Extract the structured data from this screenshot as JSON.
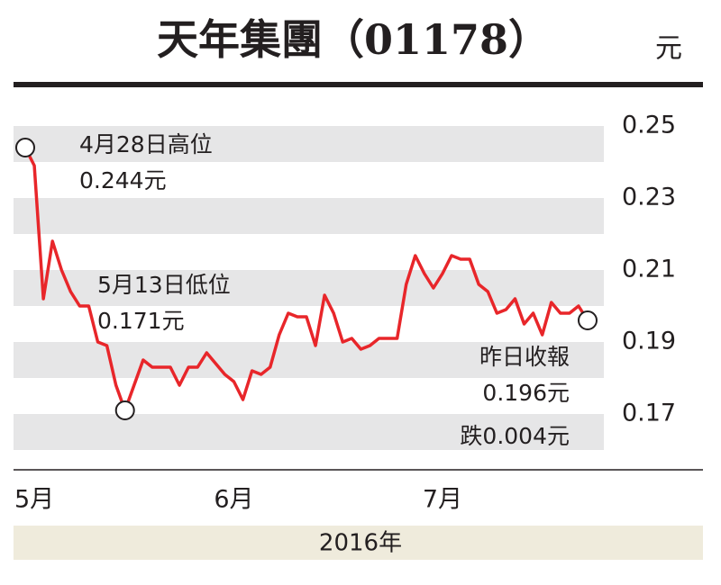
{
  "chart_data": {
    "type": "line",
    "title": "天年集團（01178）",
    "y_label": "元",
    "x_label": "2016年",
    "categories": [
      null,
      "5月",
      null,
      null,
      null,
      null,
      null,
      null,
      null,
      null,
      null,
      null,
      null,
      null,
      null,
      null,
      null,
      null,
      null,
      null,
      null,
      null,
      null,
      "6月",
      null,
      null,
      null,
      null,
      null,
      null,
      null,
      null,
      null,
      null,
      null,
      null,
      null,
      null,
      null,
      null,
      null,
      null,
      null,
      null,
      null,
      null,
      "7月",
      null,
      null,
      null,
      null,
      null,
      null,
      null,
      null,
      null,
      null,
      null,
      null,
      null,
      null,
      null,
      null
    ],
    "series": [
      {
        "color": "#e8262a",
        "values": [
          0.244,
          0.239,
          0.202,
          0.218,
          0.21,
          0.204,
          0.2,
          0.2,
          0.19,
          0.189,
          0.178,
          0.171,
          0.178,
          0.185,
          0.183,
          0.183,
          0.183,
          0.178,
          0.183,
          0.183,
          0.187,
          0.184,
          0.181,
          0.179,
          0.174,
          0.182,
          0.181,
          0.183,
          0.192,
          0.198,
          0.197,
          0.197,
          0.189,
          0.203,
          0.198,
          0.19,
          0.191,
          0.188,
          0.189,
          0.191,
          0.191,
          0.191,
          0.206,
          0.214,
          0.209,
          0.205,
          0.209,
          0.214,
          0.213,
          0.213,
          0.206,
          0.204,
          0.198,
          0.199,
          0.202,
          0.195,
          0.198,
          0.192,
          0.201,
          0.198,
          0.198,
          0.2,
          0.196
        ]
      }
    ],
    "annotations": [
      {
        "lines": [
          "4月28日高位",
          "0.244元"
        ]
      },
      {
        "lines": [
          "5月13日低位",
          "0.171元"
        ]
      },
      {
        "lines": [
          "昨日收報",
          "0.196元"
        ]
      },
      {
        "lines": [
          "跌0.004元"
        ]
      }
    ],
    "ylim": [
      0.16,
      0.255
    ],
    "yticks": [
      0.17,
      0.19,
      0.21,
      0.23,
      0.25
    ],
    "grid": "bands"
  }
}
